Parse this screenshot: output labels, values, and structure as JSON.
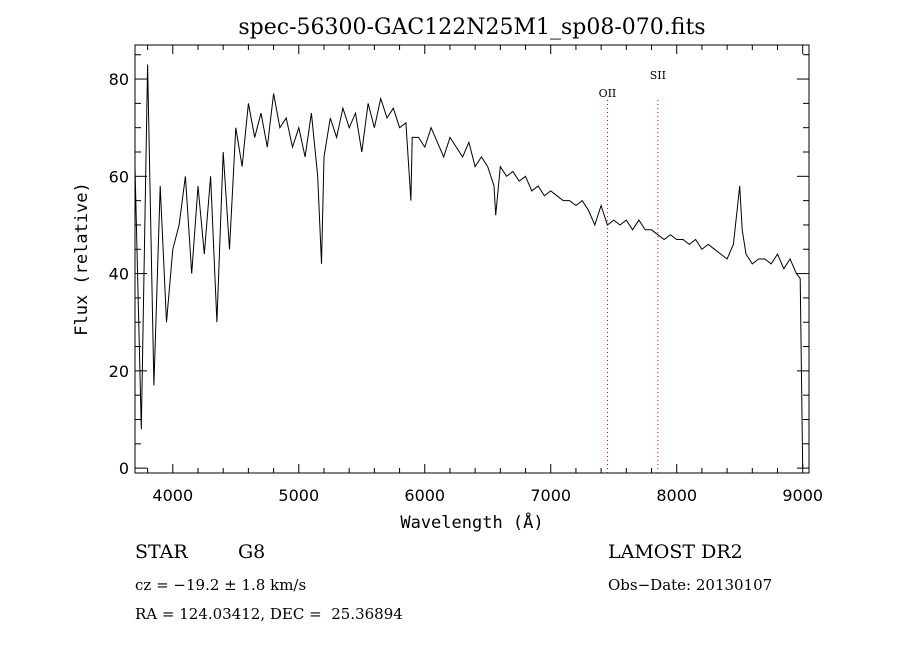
{
  "chart_data": {
    "type": "line",
    "title": "spec-56300-GAC122N25M1_sp08-070.fits",
    "xlabel": "Wavelength (Å)",
    "ylabel": "Flux (relative)",
    "xlim": [
      3700,
      9050
    ],
    "ylim": [
      -1,
      87
    ],
    "x_ticks": [
      4000,
      5000,
      6000,
      7000,
      8000,
      9000
    ],
    "y_ticks": [
      0,
      20,
      40,
      60,
      80
    ],
    "grid": false,
    "line_color": "#000000",
    "series": [
      {
        "x": [
          3700,
          3750,
          3800,
          3850,
          3900,
          3950,
          4000,
          4050,
          4100,
          4150,
          4200,
          4250,
          4300,
          4350,
          4400,
          4450,
          4500,
          4550,
          4600,
          4650,
          4700,
          4750,
          4800,
          4850,
          4900,
          4950,
          5000,
          5050,
          5100,
          5150,
          5180,
          5200,
          5250,
          5300,
          5350,
          5400,
          5450,
          5500,
          5550,
          5600,
          5650,
          5700,
          5750,
          5800,
          5850,
          5890,
          5900,
          5950,
          6000,
          6050,
          6100,
          6150,
          6200,
          6250,
          6300,
          6350,
          6400,
          6450,
          6500,
          6550,
          6563,
          6600,
          6650,
          6700,
          6750,
          6800,
          6850,
          6900,
          6950,
          7000,
          7050,
          7100,
          7150,
          7200,
          7250,
          7300,
          7350,
          7400,
          7450,
          7500,
          7550,
          7600,
          7650,
          7700,
          7750,
          7800,
          7850,
          7900,
          7950,
          8000,
          8050,
          8100,
          8150,
          8200,
          8250,
          8300,
          8350,
          8400,
          8450,
          8500,
          8520,
          8550,
          8600,
          8650,
          8700,
          8750,
          8800,
          8850,
          8900,
          8950,
          8980,
          9000
        ],
        "y": [
          62,
          8,
          83,
          17,
          58,
          30,
          45,
          50,
          60,
          40,
          58,
          44,
          60,
          30,
          65,
          45,
          70,
          62,
          75,
          68,
          73,
          66,
          77,
          70,
          72,
          66,
          70,
          64,
          73,
          60,
          42,
          64,
          72,
          68,
          74,
          70,
          73,
          65,
          75,
          70,
          76,
          72,
          74,
          70,
          71,
          55,
          68,
          68,
          66,
          70,
          67,
          64,
          68,
          66,
          64,
          67,
          62,
          64,
          62,
          58,
          52,
          62,
          60,
          61,
          59,
          60,
          57,
          58,
          56,
          57,
          56,
          55,
          55,
          54,
          55,
          53,
          50,
          54,
          50,
          51,
          50,
          51,
          49,
          51,
          49,
          49,
          48,
          47,
          48,
          47,
          47,
          46,
          47,
          45,
          46,
          45,
          44,
          43,
          46,
          58,
          49,
          44,
          42,
          43,
          43,
          42,
          44,
          41,
          43,
          40,
          39,
          0
        ]
      }
    ],
    "annotations": [
      {
        "label": "OII",
        "x": 7450,
        "color": "#dd0000"
      },
      {
        "label": "SII",
        "x": 7850,
        "color": "#dd0000"
      }
    ]
  },
  "info": {
    "object_class": "STAR",
    "subclass": "G8",
    "survey": "LAMOST DR2",
    "redshift": "cz = −19.2 ± 1.8 km/s",
    "obs_date": "Obs−Date: 20130107",
    "coords": "RA = 124.03412, DEC =  25.36894"
  }
}
